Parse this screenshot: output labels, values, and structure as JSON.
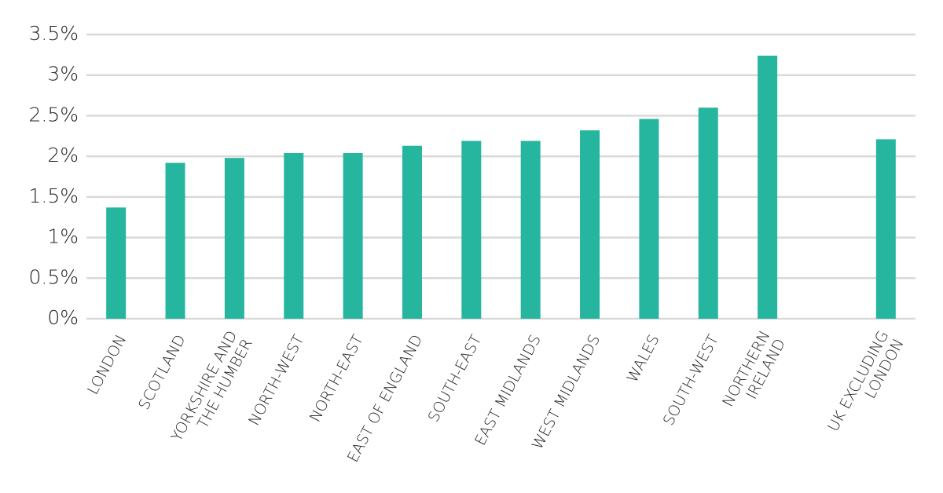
{
  "chart_data": {
    "type": "bar",
    "categories": [
      "LONDON",
      "SCOTLAND",
      "YORKSHIRE AND\nTHE HUMBER",
      "NORTH-WEST",
      "NORTH-EAST",
      "EAST OF ENGLAND",
      "SOUTH-EAST",
      "EAST MIDLANDS",
      "WEST MIDLANDS",
      "WALES",
      "SOUTH-WEST",
      "NORTHERN\nIRELAND",
      null,
      "UK EXCLUDING\nLONDON"
    ],
    "values": [
      1.37,
      1.92,
      1.98,
      2.04,
      2.04,
      2.13,
      2.19,
      2.19,
      2.32,
      2.46,
      2.6,
      3.24,
      null,
      2.21
    ],
    "color": "#26b59e",
    "ylim": [
      0,
      3.5
    ],
    "yticks": [
      {
        "value": 0,
        "label": "0%"
      },
      {
        "value": 0.5,
        "label": "0.5%"
      },
      {
        "value": 1,
        "label": "1%"
      },
      {
        "value": 1.5,
        "label": "1.5%"
      },
      {
        "value": 2,
        "label": "2%"
      },
      {
        "value": 2.5,
        "label": "2.5%"
      },
      {
        "value": 3,
        "label": "3%"
      },
      {
        "value": 3.5,
        "label": "3.5%"
      }
    ],
    "grid": true
  }
}
